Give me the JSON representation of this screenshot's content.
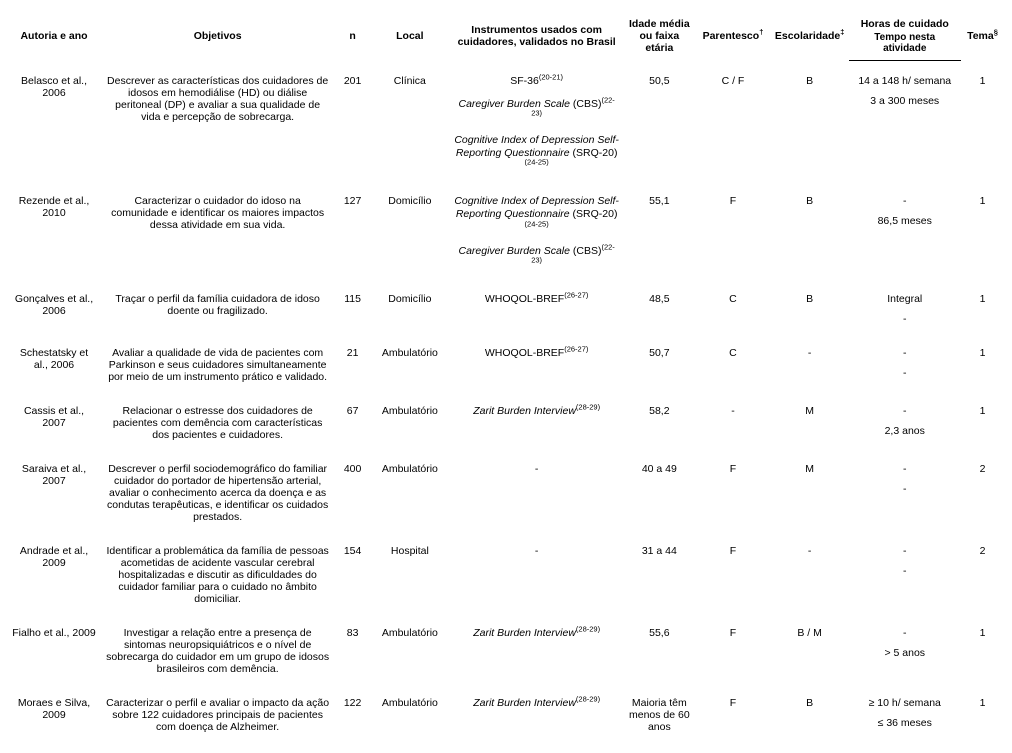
{
  "headers": {
    "autoria": "Autoria e ano",
    "objetivos": "Objetivos",
    "n": "n",
    "local": "Local",
    "instrumentos": "Instrumentos usados com cuidadores, validados no Brasil",
    "idade": "Idade média ou faixa etária",
    "parentesco": "Parentesco",
    "parentesco_sup": "†",
    "escolaridade": "Escolaridade",
    "escolaridade_sup": "‡",
    "horas": "Horas de cuidado",
    "tempo": "Tempo nesta atividade",
    "tema": "Tema",
    "tema_sup": "§"
  },
  "rows": [
    {
      "autor": "Belasco et al., 2006",
      "obj": "Descrever as características dos cuidadores de idosos em hemodiálise (HD) ou diálise peritoneal (DP) e avaliar a sua qualidade de vida e percepção de sobrecarga.",
      "n": "201",
      "local": "Clínica",
      "instr": [
        {
          "text_pre": "SF-36",
          "sup": "(20-21)"
        },
        {
          "ital": "Caregiver Burden Scale",
          "post": " (CBS)",
          "sup": "(22-23)"
        },
        {
          "ital": "Cognitive Index of Depression Self-Reporting Questionnaire",
          "post": " (SRQ-20)",
          "sup": "(24-25)"
        }
      ],
      "idade": "50,5",
      "par": "C / F",
      "esc": "B",
      "hrs_top": "14 a 148 h/ semana",
      "hrs_bot": "3 a 300 meses",
      "tema": "1"
    },
    {
      "autor": "Rezende et al., 2010",
      "obj": "Caracterizar o cuidador do idoso na comunidade e identificar os maiores impactos dessa atividade em sua vida.",
      "n": "127",
      "local": "Domicílio",
      "instr": [
        {
          "ital": "Cognitive Index of Depression Self-Reporting Questionnaire",
          "post": " (SRQ-20)",
          "sup": "(24-25)"
        },
        {
          "ital": "Caregiver Burden Scale",
          "post": " (CBS)",
          "sup": "(22-23)"
        }
      ],
      "idade": "55,1",
      "par": "F",
      "esc": "B",
      "hrs_top": "-",
      "hrs_bot": "86,5 meses",
      "tema": "1"
    },
    {
      "autor": "Gonçalves et al., 2006",
      "obj": "Traçar o perfil da família cuidadora de idoso doente ou fragilizado.",
      "n": "115",
      "local": "Domicílio",
      "instr": [
        {
          "text_pre": "WHOQOL-BREF",
          "sup": "(26-27)"
        }
      ],
      "idade": "48,5",
      "par": "C",
      "esc": "B",
      "hrs_top": "Integral",
      "hrs_bot": "-",
      "tema": "1"
    },
    {
      "autor": "Schestatsky et al., 2006",
      "obj": "Avaliar a qualidade de vida de pacientes com Parkinson e seus cuidadores simultaneamente por meio de um instrumento prático e validado.",
      "n": "21",
      "local": "Ambulatório",
      "instr": [
        {
          "text_pre": "WHOQOL-BREF",
          "sup": "(26-27)"
        }
      ],
      "idade": "50,7",
      "par": "C",
      "esc": "-",
      "hrs_top": "-",
      "hrs_bot": "-",
      "tema": "1"
    },
    {
      "autor": "Cassis et al., 2007",
      "obj": "Relacionar o estresse dos cuidadores de pacientes com demência com características dos pacientes e cuidadores.",
      "n": "67",
      "local": "Ambulatório",
      "instr": [
        {
          "ital": "Zarit Burden Interview",
          "sup": "(28-29)"
        }
      ],
      "idade": "58,2",
      "par": "-",
      "esc": "M",
      "hrs_top": "-",
      "hrs_bot": "2,3 anos",
      "tema": "1"
    },
    {
      "autor": "Saraiva et al., 2007",
      "obj": "Descrever o perfil sociodemográfico do familiar cuidador do portador de hipertensão arterial, avaliar o conhecimento acerca da doença e as condutas terapêuticas, e identificar os cuidados prestados.",
      "n": "400",
      "local": "Ambulatório",
      "instr": [
        {
          "text_pre": "-"
        }
      ],
      "idade": "40 a 49",
      "par": "F",
      "esc": "M",
      "hrs_top": "-",
      "hrs_bot": "-",
      "tema": "2"
    },
    {
      "autor": "Andrade et al., 2009",
      "obj": "Identificar a problemática da família de pessoas acometidas de acidente vascular cerebral hospitalizadas e discutir as dificuldades do cuidador familiar para o cuidado no âmbito domiciliar.",
      "n": "154",
      "local": "Hospital",
      "instr": [
        {
          "text_pre": "-"
        }
      ],
      "idade": "31 a 44",
      "par": "F",
      "esc": "-",
      "hrs_top": "-",
      "hrs_bot": "-",
      "tema": "2"
    },
    {
      "autor": "Fialho et al., 2009",
      "obj": "Investigar a relação entre a presença de sintomas neuropsiquiátricos e o nível de sobrecarga do cuidador em um grupo de idosos brasileiros com demência.",
      "n": "83",
      "local": "Ambulatório",
      "instr": [
        {
          "ital": "Zarit Burden Interview",
          "sup": "(28-29)"
        }
      ],
      "idade": "55,6",
      "par": "F",
      "esc": "B / M",
      "hrs_top": "-",
      "hrs_bot": "> 5 anos",
      "tema": "1"
    },
    {
      "autor": "Moraes e Silva, 2009",
      "obj": "Caracterizar o perfil e avaliar o impacto da ação sobre 122 cuidadores principais de pacientes com doença de Alzheimer.",
      "n": "122",
      "local": "Ambulatório",
      "instr": [
        {
          "ital": "Zarit Burden Interview",
          "sup": "(28-29)"
        }
      ],
      "idade": "Maioria têm menos de 60 anos",
      "par": "F",
      "esc": "B",
      "hrs_top": "≥ 10 h/ semana",
      "hrs_bot": "≤ 36 meses",
      "tema": "1"
    }
  ]
}
